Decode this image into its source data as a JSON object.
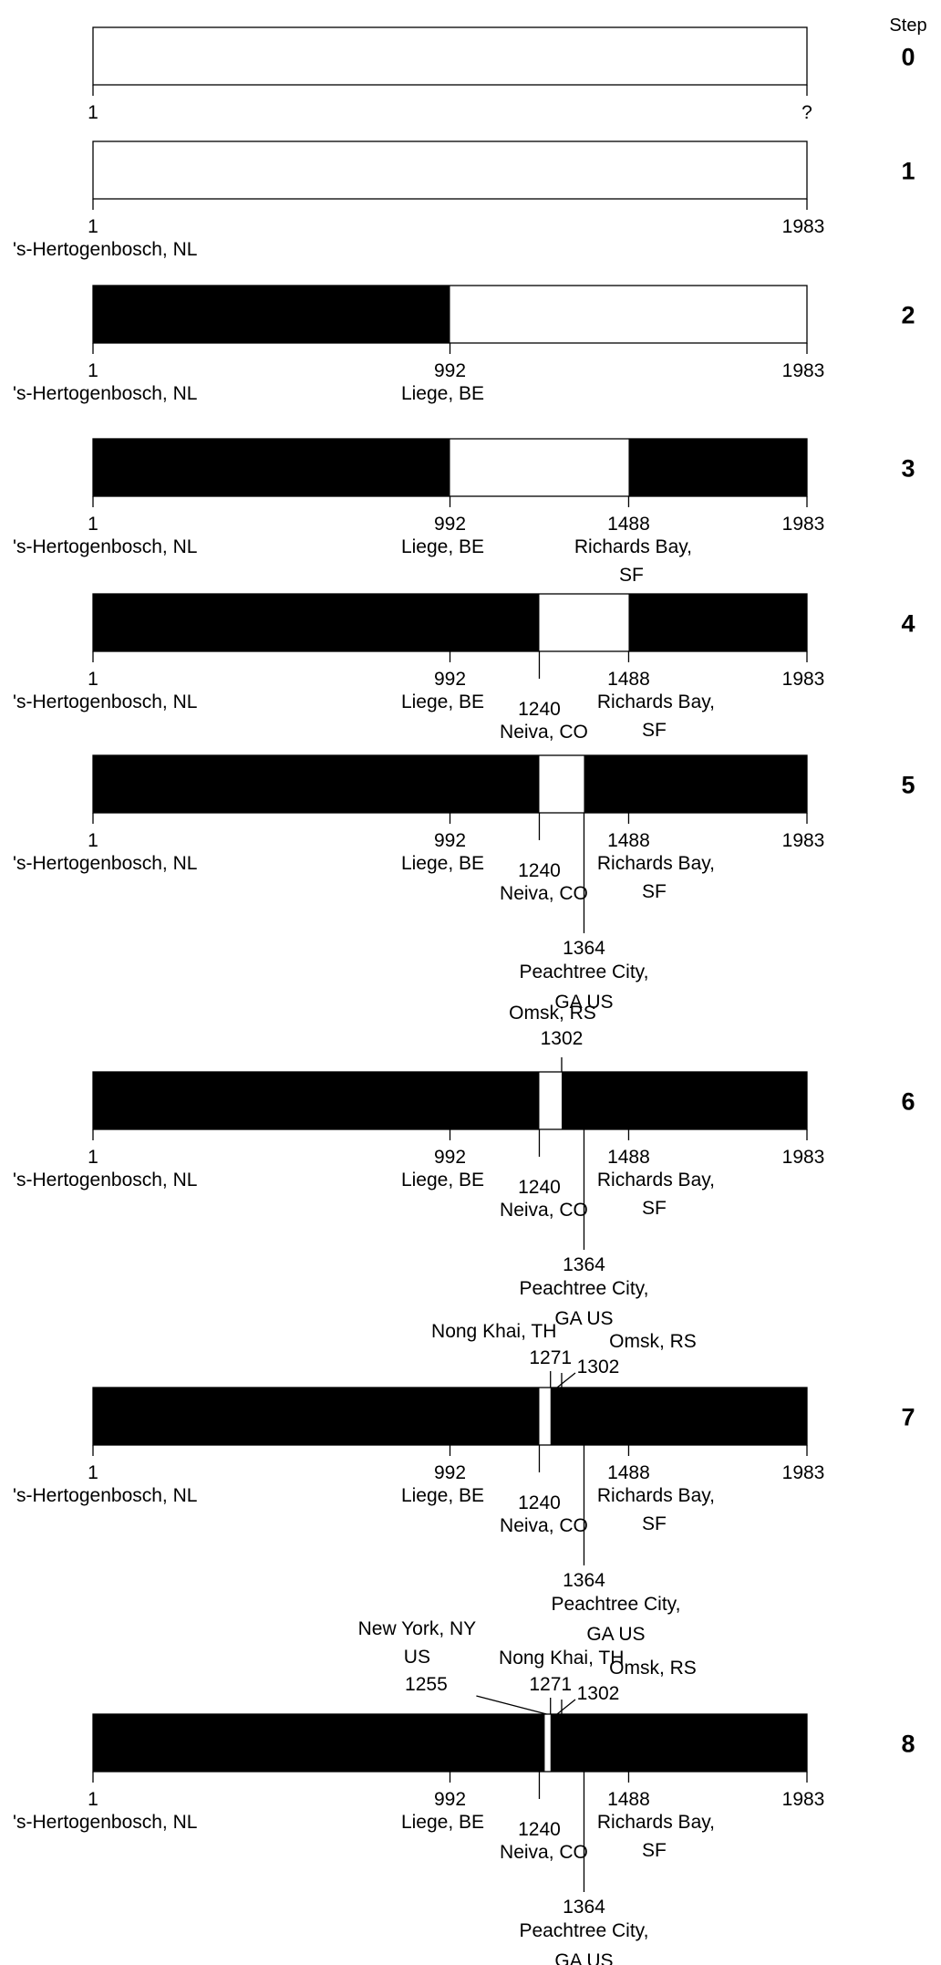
{
  "header": {
    "step_label": "Step"
  },
  "colors": {
    "filled": "#000000",
    "empty": "#ffffff",
    "stroke": "#000000"
  },
  "steps": [
    {
      "step": "0",
      "end_label": "?",
      "filled": [],
      "markers": []
    },
    {
      "step": "1",
      "end_label": "1983",
      "filled": [],
      "markers": [
        {
          "value": 1,
          "label": "1",
          "city": "'s-Hertogenbosch, NL"
        }
      ]
    },
    {
      "step": "2",
      "end_label": "1983",
      "filled": [
        [
          1,
          992
        ]
      ],
      "markers": [
        {
          "value": 1,
          "label": "1",
          "city": "'s-Hertogenbosch, NL"
        },
        {
          "value": 992,
          "label": "992",
          "city": "Liege, BE"
        }
      ]
    },
    {
      "step": "3",
      "end_label": "1983",
      "filled": [
        [
          1,
          992
        ],
        [
          1488,
          1983
        ]
      ],
      "markers": [
        {
          "value": 1,
          "label": "1",
          "city": "'s-Hertogenbosch, NL"
        },
        {
          "value": 992,
          "label": "992",
          "city": "Liege, BE"
        },
        {
          "value": 1488,
          "label": "1488",
          "city": "Richards Bay, SF"
        }
      ]
    },
    {
      "step": "4",
      "end_label": "1983",
      "filled": [
        [
          1,
          1240
        ],
        [
          1488,
          1983
        ]
      ],
      "markers": [
        {
          "value": 1,
          "label": "1",
          "city": "'s-Hertogenbosch, NL"
        },
        {
          "value": 992,
          "label": "992",
          "city": "Liege, BE"
        },
        {
          "value": 1240,
          "label": "1240",
          "city": "Neiva, CO"
        },
        {
          "value": 1488,
          "label": "1488",
          "city": "Richards Bay, SF"
        }
      ]
    },
    {
      "step": "5",
      "end_label": "1983",
      "filled": [
        [
          1,
          1240
        ],
        [
          1364,
          1983
        ]
      ],
      "markers": [
        {
          "value": 1,
          "label": "1",
          "city": "'s-Hertogenbosch, NL"
        },
        {
          "value": 992,
          "label": "992",
          "city": "Liege, BE"
        },
        {
          "value": 1240,
          "label": "1240",
          "city": "Neiva, CO"
        },
        {
          "value": 1364,
          "label": "1364",
          "city": "Peachtree City, GA US"
        },
        {
          "value": 1488,
          "label": "1488",
          "city": "Richards Bay, SF"
        }
      ]
    },
    {
      "step": "6",
      "end_label": "1983",
      "filled": [
        [
          1,
          1240
        ],
        [
          1302,
          1983
        ]
      ],
      "markers": [
        {
          "value": 1,
          "label": "1",
          "city": "'s-Hertogenbosch, NL"
        },
        {
          "value": 992,
          "label": "992",
          "city": "Liege, BE"
        },
        {
          "value": 1240,
          "label": "1240",
          "city": "Neiva, CO"
        },
        {
          "value": 1302,
          "label": "1302",
          "city": "Omsk, RS"
        },
        {
          "value": 1364,
          "label": "1364",
          "city": "Peachtree City, GA US"
        },
        {
          "value": 1488,
          "label": "1488",
          "city": "Richards Bay, SF"
        }
      ]
    },
    {
      "step": "7",
      "end_label": "1983",
      "filled": [
        [
          1,
          1240
        ],
        [
          1271,
          1983
        ]
      ],
      "markers": [
        {
          "value": 1,
          "label": "1",
          "city": "'s-Hertogenbosch, NL"
        },
        {
          "value": 992,
          "label": "992",
          "city": "Liege, BE"
        },
        {
          "value": 1240,
          "label": "1240",
          "city": "Neiva, CO"
        },
        {
          "value": 1271,
          "label": "1271",
          "city": "Nong Khai, TH"
        },
        {
          "value": 1302,
          "label": "1302",
          "city": "Omsk, RS"
        },
        {
          "value": 1364,
          "label": "1364",
          "city": "Peachtree City, GA US"
        },
        {
          "value": 1488,
          "label": "1488",
          "city": "Richards Bay, SF"
        }
      ]
    },
    {
      "step": "8",
      "end_label": "1983",
      "filled": [
        [
          1,
          1255
        ],
        [
          1271,
          1983
        ]
      ],
      "markers": [
        {
          "value": 1,
          "label": "1",
          "city": "'s-Hertogenbosch, NL"
        },
        {
          "value": 992,
          "label": "992",
          "city": "Liege, BE"
        },
        {
          "value": 1240,
          "label": "1240",
          "city": "Neiva, CO"
        },
        {
          "value": 1255,
          "label": "1255",
          "city": "New York, NY US"
        },
        {
          "value": 1271,
          "label": "1271",
          "city": "Nong Khai, TH"
        },
        {
          "value": 1302,
          "label": "1302",
          "city": "Omsk, RS"
        },
        {
          "value": 1364,
          "label": "1364",
          "city": "Peachtree City, GA US"
        },
        {
          "value": 1488,
          "label": "1488",
          "city": "Richards Bay, SF"
        }
      ]
    }
  ]
}
